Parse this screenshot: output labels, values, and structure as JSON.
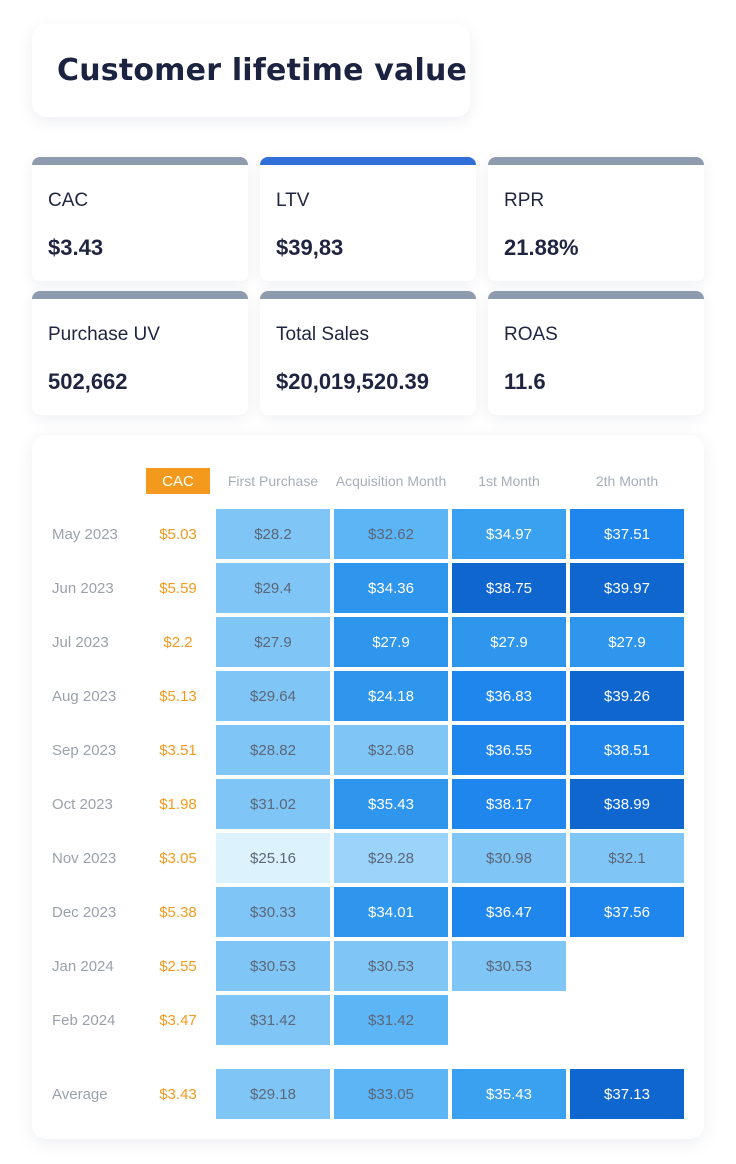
{
  "title": "Customer lifetime value",
  "kpis": [
    {
      "label": "CAC",
      "value": "$3.43",
      "accent": "#8e9aae"
    },
    {
      "label": "LTV",
      "value": "$39,83",
      "accent": "#2f6fd6"
    },
    {
      "label": "RPR",
      "value": "21.88%",
      "accent": "#8e9aae"
    },
    {
      "label": "Purchase UV",
      "value": "502,662",
      "accent": "#8e9aae"
    },
    {
      "label": "Total Sales",
      "value": "$20,019,520.39",
      "accent": "#8e9aae"
    },
    {
      "label": "ROAS",
      "value": "11.6",
      "accent": "#8e9aae"
    }
  ],
  "table": {
    "cac_header": "CAC",
    "columns": [
      "First Purchase",
      "Acquisition Month",
      "1st Month",
      "2th Month"
    ],
    "rows": [
      {
        "month": "May 2023",
        "cac": "$5.03",
        "cells": [
          "$28.2",
          "$32.62",
          "$34.97",
          "$37.51"
        ]
      },
      {
        "month": "Jun 2023",
        "cac": "$5.59",
        "cells": [
          "$29.4",
          "$34.36",
          "$38.75",
          "$39.97"
        ]
      },
      {
        "month": "Jul 2023",
        "cac": "$2.2",
        "cells": [
          "$27.9",
          "$27.9",
          "$27.9",
          "$27.9"
        ]
      },
      {
        "month": "Aug 2023",
        "cac": "$5.13",
        "cells": [
          "$29.64",
          "$24.18",
          "$36.83",
          "$39.26"
        ]
      },
      {
        "month": "Sep 2023",
        "cac": "$3.51",
        "cells": [
          "$28.82",
          "$32.68",
          "$36.55",
          "$38.51"
        ]
      },
      {
        "month": "Oct 2023",
        "cac": "$1.98",
        "cells": [
          "$31.02",
          "$35.43",
          "$38.17",
          "$38.99"
        ]
      },
      {
        "month": "Nov 2023",
        "cac": "$3.05",
        "cells": [
          "$25.16",
          "$29.28",
          "$30.98",
          "$32.1"
        ]
      },
      {
        "month": "Dec 2023",
        "cac": "$5.38",
        "cells": [
          "$30.33",
          "$34.01",
          "$36.47",
          "$37.56"
        ]
      },
      {
        "month": "Jan 2024",
        "cac": "$2.55",
        "cells": [
          "$30.53",
          "$30.53",
          "$30.53"
        ]
      },
      {
        "month": "Feb 2024",
        "cac": "$3.47",
        "cells": [
          "$31.42",
          "$31.42"
        ]
      }
    ],
    "average": {
      "month": "Average",
      "cac": "$3.43",
      "cells": [
        "$29.18",
        "$33.05",
        "$35.43",
        "$37.13"
      ]
    },
    "cell_colors": [
      [
        "#7fc6f7",
        "#5cb6f6",
        "#3aa0f0",
        "#1f86ee"
      ],
      [
        "#7fc6f7",
        "#2f96ee",
        "#0f66cf",
        "#0f66cf"
      ],
      [
        "#7fc6f7",
        "#2f96ee",
        "#2f96ee",
        "#2f96ee"
      ],
      [
        "#7fc6f7",
        "#2f96ee",
        "#1f86ee",
        "#0f66cf"
      ],
      [
        "#7fc6f7",
        "#7fc6f7",
        "#1f86ee",
        "#1f86ee"
      ],
      [
        "#7fc6f7",
        "#2f96ee",
        "#1f86ee",
        "#0f66cf"
      ],
      [
        "#dcf2fd",
        "#9bd4fa",
        "#7fc6f7",
        "#7fc6f7"
      ],
      [
        "#7fc6f7",
        "#2f96ee",
        "#1f86ee",
        "#1f86ee"
      ],
      [
        "#7fc6f7",
        "#7fc6f7",
        "#7fc6f7"
      ],
      [
        "#7fc6f7",
        "#5cb6f6"
      ]
    ],
    "average_colors": [
      "#7fc6f7",
      "#5cb6f6",
      "#3aa0f0",
      "#0f66cf"
    ]
  }
}
